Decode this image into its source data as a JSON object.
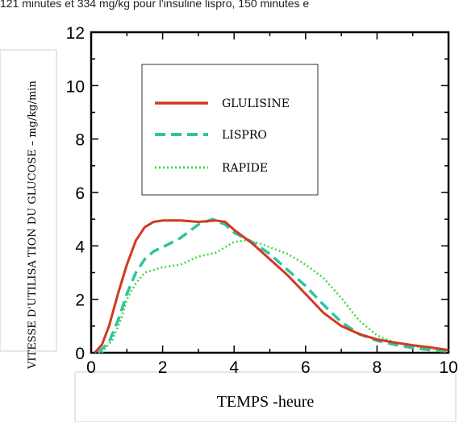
{
  "header_text": "121 minutes et 334 mg/kg pour l'insuline lispro, 150 minutes e",
  "chart_data": {
    "type": "line",
    "xlabel": "TEMPS -heure",
    "ylabel": "VITESSE D'UTILISA TION DU GLUCOSE – mg/kg/min",
    "xlim": [
      0,
      10
    ],
    "ylim": [
      0,
      12
    ],
    "x_ticks": [
      "0",
      "2",
      "4",
      "6",
      "8",
      "10"
    ],
    "y_ticks": [
      "0",
      "2",
      "4",
      "6",
      "8",
      "10",
      "12"
    ],
    "legend_position": "upper-center",
    "grid": false,
    "series": [
      {
        "name": "GLULISINE",
        "color": "#d23a1e",
        "style": "solid",
        "points": [
          [
            0.1,
            0
          ],
          [
            0.3,
            0.3
          ],
          [
            0.5,
            1
          ],
          [
            0.75,
            2.2
          ],
          [
            1,
            3.3
          ],
          [
            1.25,
            4.2
          ],
          [
            1.5,
            4.7
          ],
          [
            1.75,
            4.9
          ],
          [
            2,
            4.95
          ],
          [
            2.5,
            4.95
          ],
          [
            3,
            4.9
          ],
          [
            3.5,
            4.95
          ],
          [
            3.75,
            4.9
          ],
          [
            4,
            4.6
          ],
          [
            4.5,
            4.1
          ],
          [
            5,
            3.5
          ],
          [
            5.5,
            2.9
          ],
          [
            6,
            2.2
          ],
          [
            6.5,
            1.5
          ],
          [
            7,
            1
          ],
          [
            7.5,
            0.7
          ],
          [
            8,
            0.5
          ],
          [
            8.5,
            0.38
          ],
          [
            9,
            0.28
          ],
          [
            9.5,
            0.2
          ],
          [
            10,
            0.1
          ]
        ]
      },
      {
        "name": "LISPRO",
        "color": "#2fc4a0",
        "style": "dashed",
        "points": [
          [
            0.2,
            0
          ],
          [
            0.5,
            0.4
          ],
          [
            0.75,
            1.2
          ],
          [
            1,
            2.2
          ],
          [
            1.25,
            3
          ],
          [
            1.5,
            3.5
          ],
          [
            1.75,
            3.8
          ],
          [
            2,
            3.95
          ],
          [
            2.5,
            4.3
          ],
          [
            3,
            4.8
          ],
          [
            3.4,
            5
          ],
          [
            3.75,
            4.8
          ],
          [
            4,
            4.5
          ],
          [
            4.5,
            4.15
          ],
          [
            5,
            3.7
          ],
          [
            5.5,
            3.1
          ],
          [
            6,
            2.5
          ],
          [
            6.5,
            1.8
          ],
          [
            7,
            1.15
          ],
          [
            7.5,
            0.7
          ],
          [
            8,
            0.45
          ],
          [
            8.5,
            0.3
          ],
          [
            9,
            0.18
          ],
          [
            9.5,
            0.1
          ],
          [
            10,
            0.05
          ]
        ]
      },
      {
        "name": "RAPIDE",
        "color": "#3fd83f",
        "style": "dotted",
        "points": [
          [
            0.3,
            0
          ],
          [
            0.6,
            0.5
          ],
          [
            0.85,
            1.3
          ],
          [
            1,
            2
          ],
          [
            1.25,
            2.6
          ],
          [
            1.5,
            3
          ],
          [
            2,
            3.2
          ],
          [
            2.5,
            3.3
          ],
          [
            3,
            3.6
          ],
          [
            3.5,
            3.75
          ],
          [
            4,
            4.15
          ],
          [
            4.3,
            4.2
          ],
          [
            4.7,
            4.1
          ],
          [
            5,
            3.95
          ],
          [
            5.5,
            3.7
          ],
          [
            6,
            3.3
          ],
          [
            6.5,
            2.8
          ],
          [
            7,
            2.05
          ],
          [
            7.5,
            1.2
          ],
          [
            8,
            0.65
          ],
          [
            8.5,
            0.38
          ],
          [
            9,
            0.25
          ],
          [
            9.5,
            0.15
          ],
          [
            10,
            0.1
          ]
        ]
      }
    ]
  }
}
